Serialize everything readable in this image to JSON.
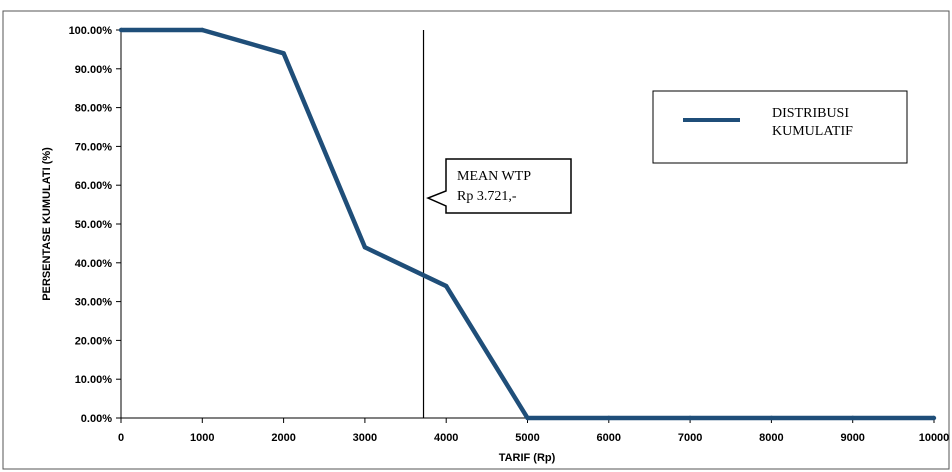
{
  "chart_data": {
    "type": "line",
    "xlabel": "TARIF (Rp)",
    "ylabel": "PERSENTASE KUMULATI (%)",
    "xlim": [
      0,
      10000
    ],
    "ylim": [
      0,
      100
    ],
    "x_ticks": [
      "0",
      "1000",
      "2000",
      "3000",
      "4000",
      "5000",
      "6000",
      "7000",
      "8000",
      "9000",
      "10000"
    ],
    "y_ticks": [
      "0.00%",
      "10.00%",
      "20.00%",
      "30.00%",
      "40.00%",
      "50.00%",
      "60.00%",
      "70.00%",
      "80.00%",
      "90.00%",
      "100.00%"
    ],
    "series": [
      {
        "name": "DISTRIBUSI KUMULATIF",
        "color": "#1f4e79",
        "x": [
          0,
          1000,
          2000,
          3000,
          4000,
          5000,
          6000,
          7000,
          8000,
          9000,
          10000
        ],
        "y": [
          100,
          100,
          94,
          44,
          34,
          0,
          0,
          0,
          0,
          0,
          0
        ]
      }
    ],
    "vertical_line": {
      "x": 3721
    },
    "annotation": {
      "line1": "MEAN WTP",
      "line2": "Rp 3.721,-"
    },
    "legend": {
      "position": "top-right",
      "line1": "DISTRIBUSI",
      "line2": "KUMULATIF"
    },
    "grid": false
  }
}
